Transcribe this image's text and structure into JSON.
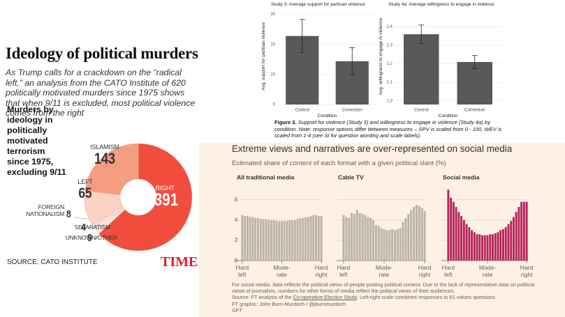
{
  "chart_data": [
    {
      "type": "pie",
      "title": "Ideology of political murders",
      "subtitle": "As Trump calls for a crackdown on the “radical left,” an analysis from the CATO Institute of 620 politically motivated murders since 1975 shows that when 9/11 is excluded, most political violence comes from the right",
      "label": "Murders by ideology in politically motivated terrorism since 1975, excluding 9/11",
      "categories": [
        "RIGHT",
        "UNKNOWN/OTHER",
        "SEPARATISM",
        "FOREIGN NATIONALISM",
        "LEFT",
        "ISLAMISM"
      ],
      "values": [
        391,
        9,
        4,
        8,
        65,
        143
      ],
      "colors": [
        "#f04d3d",
        "#fde6dc",
        "#ffffff",
        "#fbdcd0",
        "#fbd3c2",
        "#f59d80"
      ],
      "source": "SOURCE: CATO INSTITUTE",
      "logo": "TIME"
    },
    {
      "type": "bar",
      "title": "Study 3: Average support for partisan violence",
      "ylabel": "Avg. support for partisan violence",
      "xlabel": "Condition",
      "categories": [
        "Control",
        "Correction"
      ],
      "values": [
        22.8,
        14.4
      ],
      "errors": [
        5.5,
        4.5
      ],
      "color": "#595959",
      "ylim": [
        0,
        32
      ],
      "yticks": [
        0,
        10,
        20,
        30
      ],
      "grid": true
    },
    {
      "type": "bar",
      "title": "Study 4a: Average willingness to engage in violence",
      "ylabel": "Avg. willingness to engage in violence",
      "xlabel": "Condition",
      "categories": [
        "Control",
        "Correction"
      ],
      "values": [
        1.36,
        1.21
      ],
      "errors": [
        0.05,
        0.035
      ],
      "color": "#595959",
      "ylim": [
        0.98,
        1.5
      ],
      "yticks": [
        {
          "value": 1,
          "label": "1.0"
        },
        1.1,
        1.2,
        1.3,
        1.4
      ],
      "grid": true
    },
    {
      "type": "bar",
      "title": "All traditional media",
      "categories": [
        "Hard left",
        null,
        null,
        null,
        null,
        null,
        null,
        null,
        null,
        null,
        null,
        null,
        null,
        null,
        null,
        "Mode-rate",
        null,
        null,
        null,
        null,
        null,
        null,
        null,
        null,
        null,
        null,
        null,
        null,
        null,
        null,
        "Hard right"
      ],
      "values": [
        4.5,
        4.4,
        4.4,
        4.3,
        4.3,
        4.2,
        4.2,
        4.1,
        4.1,
        4.1,
        4.0,
        4.0,
        4.0,
        3.9,
        3.9,
        3.9,
        3.9,
        3.9,
        4.0,
        4.0,
        4.0,
        4.1,
        4.2,
        4.2,
        4.3,
        4.3,
        4.4,
        4.5,
        4.5,
        4.4,
        4.4
      ],
      "color": "#bdb3a9",
      "ylim": [
        0,
        7.5
      ],
      "yticks": [
        0,
        2,
        4,
        6
      ],
      "grid": true
    },
    {
      "type": "bar",
      "title": "Cable TV",
      "categories": [
        "Hard left",
        null,
        null,
        null,
        null,
        null,
        null,
        null,
        null,
        null,
        null,
        null,
        null,
        null,
        null,
        "Mode-rate",
        null,
        null,
        null,
        null,
        null,
        null,
        null,
        null,
        null,
        null,
        null,
        null,
        null,
        null,
        "Hard right"
      ],
      "values": [
        4.5,
        4.3,
        4.2,
        4.7,
        4.6,
        5.0,
        4.7,
        4.6,
        4.5,
        4.3,
        4.2,
        4.0,
        3.5,
        3.4,
        3.2,
        3.1,
        3.0,
        3.0,
        3.1,
        3.0,
        3.1,
        3.2,
        3.8,
        4.2,
        4.6,
        5.0,
        5.3,
        5.5,
        5.4,
        5.2,
        4.9
      ],
      "color": "#bdb3a9",
      "ylim": [
        0,
        7.5
      ],
      "yticks": [
        0,
        2,
        4,
        6
      ],
      "grid": true
    },
    {
      "type": "bar",
      "title": "Social media",
      "categories": [
        "Hard left",
        null,
        null,
        null,
        null,
        null,
        null,
        null,
        null,
        null,
        null,
        null,
        null,
        null,
        null,
        "Mode-rate",
        null,
        null,
        null,
        null,
        null,
        null,
        null,
        null,
        null,
        null,
        null,
        null,
        null,
        null,
        "Hard right"
      ],
      "values": [
        7.0,
        6.2,
        5.8,
        5.3,
        4.8,
        4.4,
        4.0,
        3.6,
        3.3,
        3.0,
        2.8,
        2.6,
        2.6,
        2.5,
        2.5,
        2.5,
        2.6,
        2.6,
        2.7,
        2.8,
        3.0,
        3.1,
        3.3,
        3.6,
        3.9,
        4.3,
        4.8,
        5.3,
        5.8,
        5.8,
        5.8
      ],
      "color": "#b5245a",
      "ylim": [
        0,
        7.5
      ],
      "yticks": [
        0,
        2,
        4,
        6
      ],
      "grid": true
    }
  ],
  "study_figure": {
    "caption_label": "Figure 2.",
    "caption": "Support for violence (Study 3) and willingness to engage in violence (Study 4a) by condition. Note: response options differ between measures – SPV is scaled from 0 - 100, WEV is scaled from 1-4 (see SI for question wording and scale labels)."
  },
  "ft_figure": {
    "title": "Extreme views and narratives are over-represented on social media",
    "subtitle": "Estimated share of content of each format with a given political slant (%)",
    "note": "For social media, data reflects the political views of people posting political content. Due to the lack of representative data on political views of journalists, numbers for other forms of media reflect the political views of their audiences.",
    "source": [
      "Source: FT analysis of the ",
      "Co-operative Election Study",
      ". Left-right scale combines responses to 61 values questions"
    ],
    "credit": "FT graphic: John Burn-Murdoch / @jburnmurdoch",
    "copyright": "©FT"
  }
}
